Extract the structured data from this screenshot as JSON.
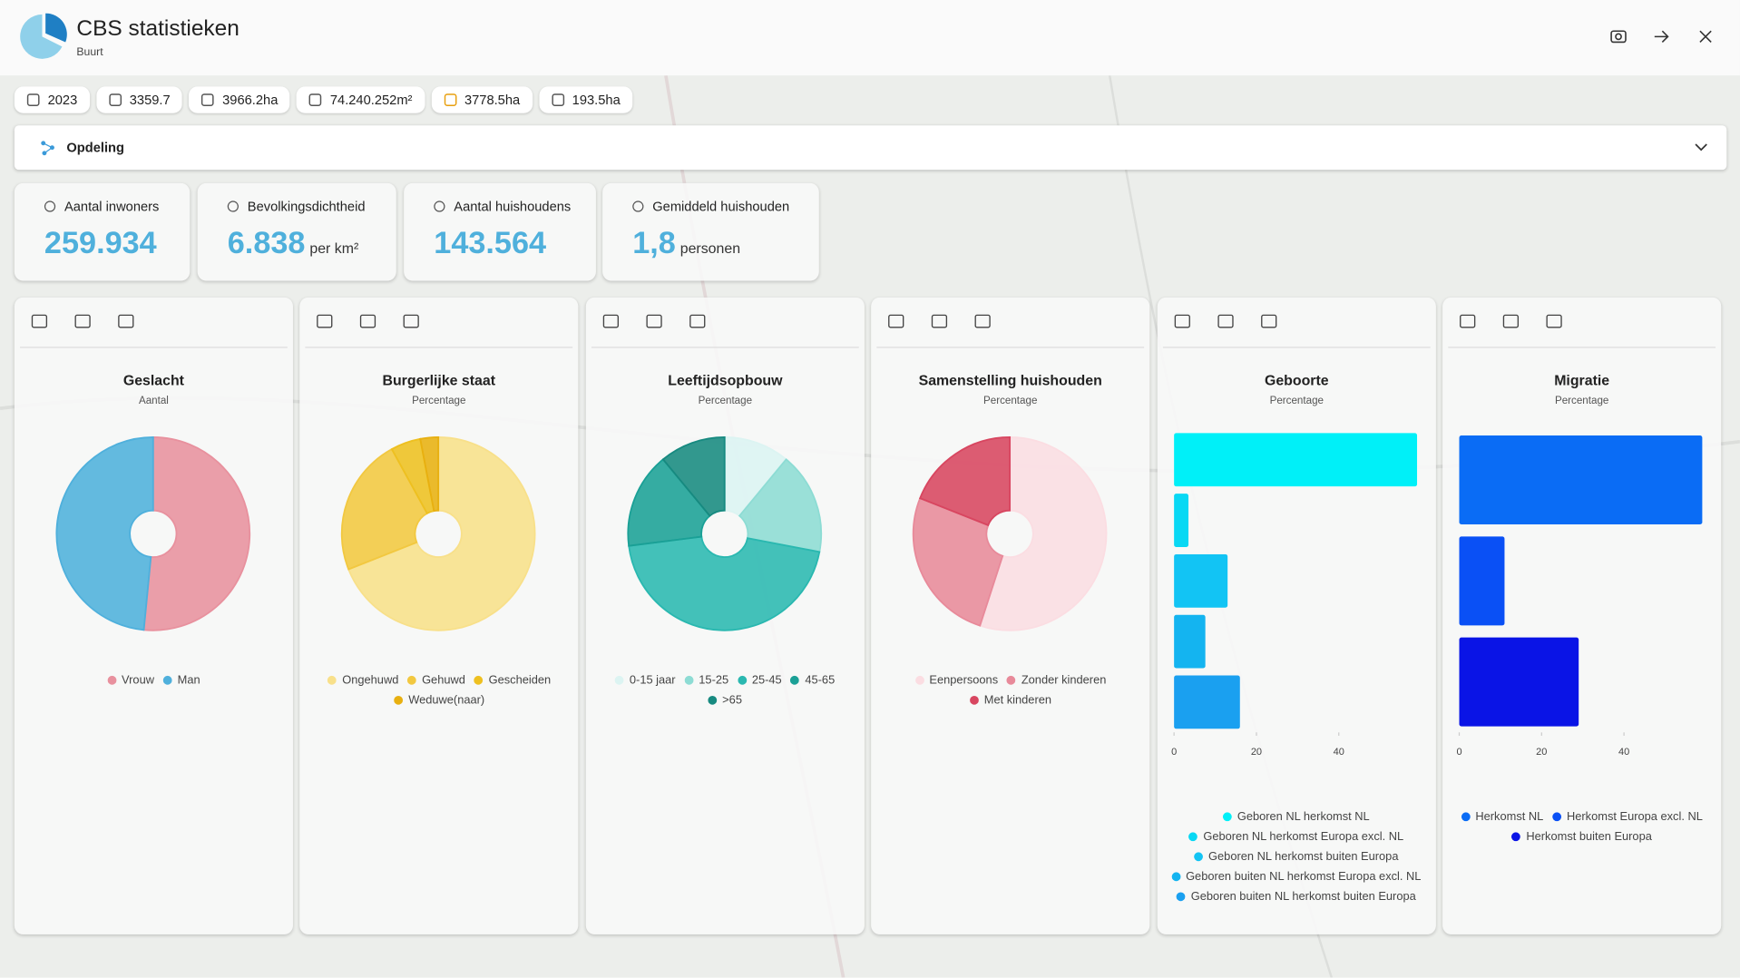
{
  "header": {
    "title": "CBS statistieken",
    "subtitle": "Buurt"
  },
  "chips": [
    "2023",
    "3359.7",
    "3966.2ha",
    "74.240.252m²",
    "3778.5ha",
    "193.5ha"
  ],
  "panel": {
    "title": "Opdeling"
  },
  "stats": [
    {
      "label": "Aantal inwoners",
      "value": "259.934"
    },
    {
      "label": "Bevolkingsdichtheid",
      "value": "6.838",
      "unit": "per km²"
    },
    {
      "label": "Aantal huishoudens",
      "value": "143.564"
    },
    {
      "label": "Gemiddeld huishouden",
      "value": "1,8",
      "unit": "personen"
    }
  ],
  "chart_data": [
    {
      "type": "pie",
      "title": "Geslacht",
      "subtitle": "Aantal",
      "categories": [
        "Vrouw",
        "Man"
      ],
      "values": [
        134000,
        126000
      ],
      "colors": [
        "#e8919e",
        "#4fb0dc"
      ]
    },
    {
      "type": "pie",
      "title": "Burgerlijke staat",
      "subtitle": "Percentage",
      "categories": [
        "Ongehuwd",
        "Gehuwd",
        "Gescheiden",
        "Weduwe(naar)"
      ],
      "values": [
        69,
        23,
        5,
        3
      ],
      "colors": [
        "#f8e08a",
        "#f2c840",
        "#eec020",
        "#e8b010"
      ]
    },
    {
      "type": "pie",
      "title": "Leeftijdsopbouw",
      "subtitle": "Percentage",
      "categories": [
        "0-15 jaar",
        "15-25",
        "25-45",
        "45-65",
        ">65"
      ],
      "values": [
        11,
        17,
        45,
        16,
        11
      ],
      "colors": [
        "#dcf4f2",
        "#8ddcd4",
        "#2ab8b0",
        "#1aa096",
        "#178a80"
      ]
    },
    {
      "type": "pie",
      "title": "Samenstelling huishouden",
      "subtitle": "Percentage",
      "categories": [
        "Eenpersoons",
        "Zonder kinderen",
        "Met kinderen"
      ],
      "values": [
        55,
        26,
        19
      ],
      "colors": [
        "#fbdde2",
        "#e88a9a",
        "#d84660"
      ]
    },
    {
      "type": "bar",
      "title": "Geboorte",
      "subtitle": "Percentage",
      "categories": [
        "Geboren NL herkomst NL",
        "Geboren NL herkomst Europa excl. NL",
        "Geboren NL herkomst buiten Europa",
        "Geboren buiten NL herkomst Europa excl. NL",
        "Geboren buiten NL herkomst buiten Europa"
      ],
      "values": [
        59,
        3.5,
        13,
        7.6,
        16
      ],
      "colors": [
        "#00f0f8",
        "#08d8f4",
        "#12c4f4",
        "#14b4f0",
        "#1aa0f0"
      ],
      "xlim": [
        0,
        59
      ],
      "xticks": [
        0,
        20,
        40
      ]
    },
    {
      "type": "bar",
      "title": "Migratie",
      "subtitle": "Percentage",
      "categories": [
        "Herkomst NL",
        "Herkomst Europa excl. NL",
        "Herkomst buiten Europa"
      ],
      "values": [
        59,
        11,
        29
      ],
      "colors": [
        "#0a6cf5",
        "#0a50f5",
        "#0a14e6"
      ],
      "xlim": [
        0,
        59
      ],
      "xticks": [
        0,
        20,
        40
      ]
    }
  ]
}
